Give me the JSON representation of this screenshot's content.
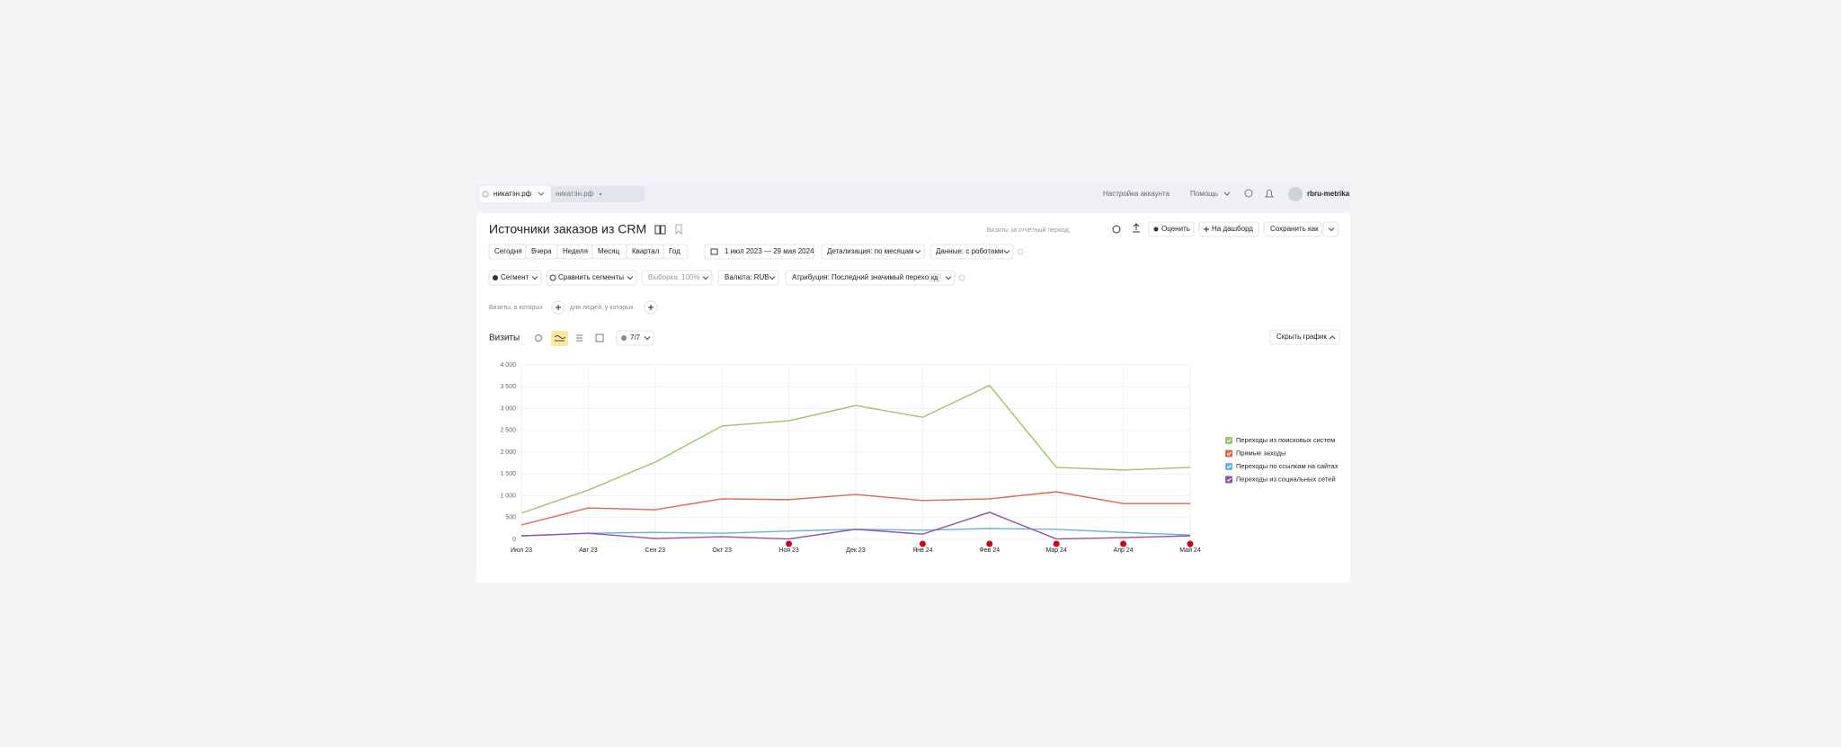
{
  "top_bar": {
    "counter": "никатэн.рф",
    "tab": "никатэн.рф",
    "links": [
      "Настройка аккаунта",
      "Помощь"
    ],
    "user": "rbru-metrika"
  },
  "report": {
    "title": "Источники заказов из CRM",
    "period_note": "Визиты за отчётный период:",
    "actions": [
      "Оценить",
      "На дашборд",
      "Сохранить как"
    ]
  },
  "filters": {
    "periods": [
      "Сегодня",
      "Вчера",
      "Неделя",
      "Месяц",
      "Квартал",
      "Год"
    ],
    "date_range": "1 июл 2023 — 29 мая 2024",
    "detail": "Детализация: по месяцам",
    "data": "Данные: с роботами"
  },
  "segments": {
    "buttons": [
      "Сегмент",
      "Сравнить сегменты",
      "Выборка: 100%",
      "Валюта: RUB",
      "Атрибуция: Последний значимый переход"
    ],
    "attribution_badge": "кд"
  },
  "conditions": [
    "Визиты, в которых",
    "для людей, у которых"
  ],
  "chart_panel": {
    "metric": "Визиты",
    "series_count": "7/7",
    "hide_chart": "Скрыть график"
  },
  "chart_data": {
    "type": "line",
    "categories": [
      "Июл 23",
      "Авг 23",
      "Сен 23",
      "Окт 23",
      "Ноя 23",
      "Дек 23",
      "Янв 24",
      "Фев 24",
      "Мар 24",
      "Апр 24",
      "Май 24"
    ],
    "series": [
      {
        "name": "Переходы из поисковых систем",
        "color": "#9cc46c",
        "values": [
          600,
          1130,
          1770,
          2600,
          2720,
          3070,
          2800,
          3530,
          1650,
          1590,
          1650
        ]
      },
      {
        "name": "Прямые заходы",
        "color": "#e0674f",
        "values": [
          330,
          720,
          680,
          930,
          910,
          1030,
          890,
          930,
          1090,
          820,
          820
        ]
      },
      {
        "name": "Переходы по ссылкам на сайтах",
        "color": "#6cb2de",
        "values": [
          80,
          140,
          160,
          140,
          190,
          230,
          210,
          250,
          230,
          160,
          100
        ]
      },
      {
        "name": "Переходы из социальных сетей",
        "color": "#8e55a8",
        "values": [
          80,
          140,
          20,
          60,
          10,
          230,
          120,
          620,
          10,
          40,
          80
        ]
      }
    ],
    "ylim": [
      0,
      4000
    ],
    "yticks": [
      0,
      500,
      {
        "value": 1000,
        "label": "1 000"
      },
      {
        "value": 1500,
        "label": "1 500"
      },
      {
        "value": 2000,
        "label": "2 000"
      },
      {
        "value": 2500,
        "label": "2 500"
      },
      {
        "value": 3000,
        "label": "3 000"
      },
      {
        "value": 3500,
        "label": "3 500"
      },
      {
        "value": 4000,
        "label": "4 000"
      }
    ],
    "grid": true
  }
}
